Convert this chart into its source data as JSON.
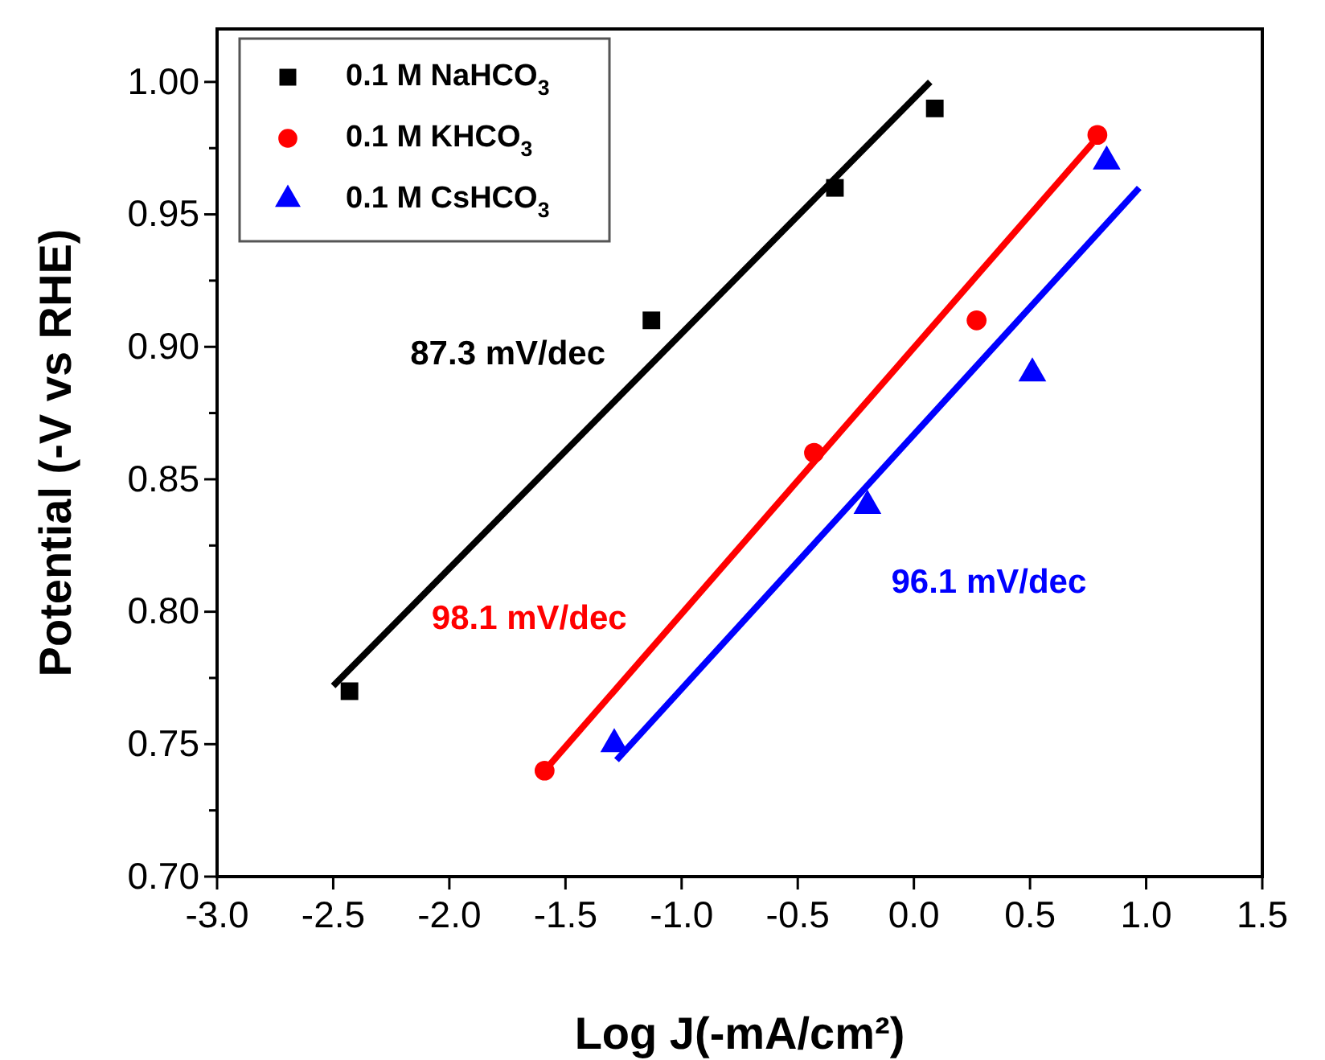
{
  "chart_data": {
    "type": "scatter",
    "xlabel": "Log J(-mA/cm²)",
    "ylabel": "Potential (-V vs RHE)",
    "xlim": [
      -3.0,
      1.5
    ],
    "ylim": [
      0.7,
      1.02
    ],
    "xticks": [
      {
        "value": -3,
        "label": "-3.0"
      },
      {
        "value": -2.5,
        "label": "-2.5"
      },
      {
        "value": -2,
        "label": "-2.0"
      },
      {
        "value": -1.5,
        "label": "-1.5"
      },
      {
        "value": -1,
        "label": "-1.0"
      },
      {
        "value": -0.5,
        "label": "-0.5"
      },
      {
        "value": 0,
        "label": "0.0"
      },
      {
        "value": 0.5,
        "label": "0.5"
      },
      {
        "value": 1,
        "label": "1.0"
      },
      {
        "value": 1.5,
        "label": "1.5"
      }
    ],
    "yticks": [
      {
        "value": 0.7,
        "label": "0.70"
      },
      {
        "value": 0.725,
        "label": null
      },
      {
        "value": 0.75,
        "label": "0.75"
      },
      {
        "value": 0.775,
        "label": null
      },
      {
        "value": 0.8,
        "label": "0.80"
      },
      {
        "value": 0.825,
        "label": null
      },
      {
        "value": 0.85,
        "label": "0.85"
      },
      {
        "value": 0.875,
        "label": null
      },
      {
        "value": 0.9,
        "label": "0.90"
      },
      {
        "value": 0.925,
        "label": null
      },
      {
        "value": 0.95,
        "label": "0.95"
      },
      {
        "value": 0.975,
        "label": null
      },
      {
        "value": 1.0,
        "label": "1.00"
      }
    ],
    "legend": "top left",
    "grid": false,
    "series": [
      {
        "name": "0.1 M NaHCO$_{3}$",
        "color": "#000000",
        "marker": "square",
        "x": [
          -2.43,
          -1.13,
          -0.34,
          0.09
        ],
        "values": [
          0.77,
          0.91,
          0.96,
          0.99
        ]
      },
      {
        "name": "0.1 M KHCO$_{3}$",
        "color": "#ff0000",
        "marker": "circle",
        "x": [
          -1.59,
          -0.43,
          0.27,
          0.79
        ],
        "values": [
          0.74,
          0.86,
          0.91,
          0.98
        ]
      },
      {
        "name": "0.1 M CsHCO$_{3}$",
        "color": "#0000ff",
        "marker": "triangle",
        "x": [
          -1.29,
          -0.2,
          0.51,
          0.83
        ],
        "values": [
          0.75,
          0.84,
          0.89,
          0.97
        ]
      },
      {
        "type": "line",
        "color": "#000000",
        "x": [
          -2.5,
          0.07
        ],
        "values": [
          0.772,
          1.0
        ]
      },
      {
        "type": "line",
        "color": "#ff0000",
        "x": [
          -1.59,
          0.77
        ],
        "values": [
          0.74,
          0.977
        ]
      },
      {
        "type": "line",
        "color": "#0000ff",
        "x": [
          -1.28,
          0.97
        ],
        "values": [
          0.744,
          0.96
        ]
      }
    ],
    "annotations": [
      "87.3 mV/dec",
      "98.1 mV/dec",
      "96.1 mV/dec"
    ]
  }
}
